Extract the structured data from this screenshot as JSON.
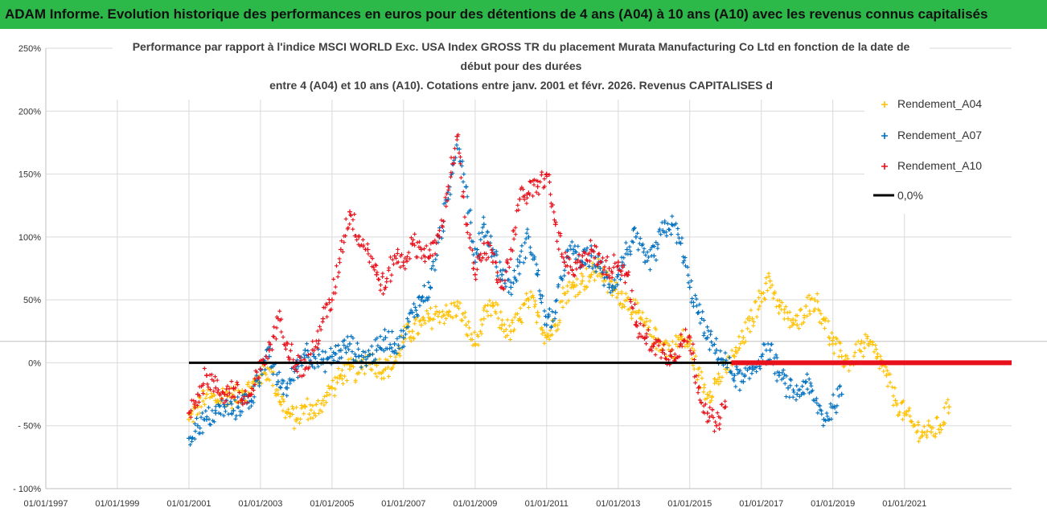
{
  "banner": {
    "title": "ADAM Informe. Evolution historique des performances en euros pour des détentions de 4 ans (A04) à 10 ans (A10) avec les revenus connus capitalisés"
  },
  "colors": {
    "banner": "#2db84a",
    "A04": "#ffc000",
    "A07": "#0070c0",
    "A10": "#e8101a",
    "zero": "#000000",
    "grid": "#d9d9d9"
  },
  "chart_data": {
    "type": "scatter",
    "title_lines": [
      "Performance par rapport à l'indice MSCI WORLD Exc. USA Index GROSS TR  du placement Murata Manufacturing Co Ltd en fonction de la date de",
      "début pour des durées",
      "entre 4 (A04) et 10 ans (A10). Cotations entre janv. 2001 et févr. 2026. Revenus CAPITALISES d"
    ],
    "xlabel": "",
    "ylabel": "",
    "xlim": [
      "1997-01-01",
      "2023-12-31"
    ],
    "ylim": [
      -100,
      250
    ],
    "x_ticks": [
      "01/01/1997",
      "01/01/1999",
      "01/01/2001",
      "01/01/2003",
      "01/01/2005",
      "01/01/2007",
      "01/01/2009",
      "01/01/2011",
      "01/01/2013",
      "01/01/2015",
      "01/01/2017",
      "01/01/2019",
      "01/01/2021"
    ],
    "y_ticks": [
      "250%",
      "200%",
      "150%",
      "100%",
      "50%",
      "0%",
      "- 50%",
      "- 100%"
    ],
    "legend_position": "right",
    "series": [
      {
        "name": "Rendement_A04",
        "x": [
          "2001-01-01",
          "2001-04-01",
          "2001-07-01",
          "2001-10-01",
          "2002-01-01",
          "2002-04-01",
          "2002-07-01",
          "2002-10-01",
          "2003-01-01",
          "2003-04-01",
          "2003-07-01",
          "2003-10-01",
          "2004-01-01",
          "2004-04-01",
          "2004-07-01",
          "2004-10-01",
          "2005-01-01",
          "2005-04-01",
          "2005-07-01",
          "2005-10-01",
          "2006-01-01",
          "2006-04-01",
          "2006-07-01",
          "2006-10-01",
          "2007-01-01",
          "2007-04-01",
          "2007-07-01",
          "2007-10-01",
          "2008-01-01",
          "2008-04-01",
          "2008-07-01",
          "2008-10-01",
          "2009-01-01",
          "2009-04-01",
          "2009-07-01",
          "2009-10-01",
          "2010-01-01",
          "2010-04-01",
          "2010-07-01",
          "2010-10-01",
          "2011-01-01",
          "2011-04-01",
          "2011-07-01",
          "2011-10-01",
          "2012-01-01",
          "2012-04-01",
          "2012-07-01",
          "2012-10-01",
          "2013-01-01",
          "2013-04-01",
          "2013-07-01",
          "2013-10-01",
          "2014-01-01",
          "2014-04-01",
          "2014-07-01",
          "2014-10-01",
          "2015-01-01",
          "2015-04-01",
          "2015-07-01",
          "2015-10-01",
          "2016-01-01",
          "2016-04-01",
          "2016-07-01",
          "2016-10-01",
          "2017-01-01",
          "2017-04-01",
          "2017-07-01",
          "2017-10-01",
          "2018-01-01",
          "2018-04-01",
          "2018-07-01",
          "2018-10-01",
          "2019-01-01",
          "2019-04-01",
          "2019-07-01",
          "2019-10-01",
          "2020-01-01",
          "2020-04-01",
          "2020-07-01",
          "2020-10-01",
          "2021-01-01",
          "2021-04-01",
          "2021-07-01",
          "2021-10-01",
          "2022-01-01",
          "2022-04-01"
        ],
        "y": [
          -45,
          -35,
          -25,
          -30,
          -25,
          -28,
          -22,
          -20,
          -10,
          -5,
          -25,
          -40,
          -45,
          -35,
          -40,
          -30,
          -20,
          -10,
          -5,
          -8,
          5,
          -2,
          -5,
          0,
          20,
          25,
          30,
          35,
          40,
          38,
          45,
          30,
          15,
          35,
          45,
          30,
          25,
          35,
          50,
          40,
          20,
          30,
          55,
          60,
          65,
          70,
          75,
          60,
          55,
          50,
          40,
          30,
          20,
          15,
          10,
          20,
          15,
          -10,
          -25,
          -15,
          -5,
          5,
          20,
          35,
          55,
          65,
          45,
          35,
          30,
          45,
          50,
          35,
          15,
          5,
          0,
          10,
          15,
          5,
          -10,
          -30,
          -40,
          -50,
          -55,
          -55,
          -50,
          -35
        ]
      },
      {
        "name": "Rendement_A07",
        "x": [
          "2001-01-01",
          "2001-04-01",
          "2001-07-01",
          "2001-10-01",
          "2002-01-01",
          "2002-04-01",
          "2002-07-01",
          "2002-10-01",
          "2003-01-01",
          "2003-04-01",
          "2003-07-01",
          "2003-10-01",
          "2004-01-01",
          "2004-04-01",
          "2004-07-01",
          "2004-10-01",
          "2005-01-01",
          "2005-04-01",
          "2005-07-01",
          "2005-10-01",
          "2006-01-01",
          "2006-04-01",
          "2006-07-01",
          "2006-10-01",
          "2007-01-01",
          "2007-04-01",
          "2007-07-01",
          "2007-10-01",
          "2008-01-01",
          "2008-04-01",
          "2008-07-01",
          "2008-10-01",
          "2009-01-01",
          "2009-04-01",
          "2009-07-01",
          "2009-10-01",
          "2010-01-01",
          "2010-04-01",
          "2010-07-01",
          "2010-10-01",
          "2011-01-01",
          "2011-04-01",
          "2011-07-01",
          "2011-10-01",
          "2012-01-01",
          "2012-04-01",
          "2012-07-01",
          "2012-10-01",
          "2013-01-01",
          "2013-04-01",
          "2013-07-01",
          "2013-10-01",
          "2014-01-01",
          "2014-04-01",
          "2014-07-01",
          "2014-10-01",
          "2015-01-01",
          "2015-04-01",
          "2015-07-01",
          "2015-10-01",
          "2016-01-01",
          "2016-04-01",
          "2016-07-01",
          "2016-10-01",
          "2017-01-01",
          "2017-04-01",
          "2017-07-01",
          "2017-10-01",
          "2018-01-01",
          "2018-04-01",
          "2018-07-01",
          "2018-10-01",
          "2019-01-01",
          "2019-04-01"
        ],
        "y": [
          -60,
          -50,
          -45,
          -40,
          -35,
          -38,
          -32,
          -30,
          -5,
          5,
          -15,
          -20,
          -5,
          10,
          5,
          0,
          5,
          10,
          15,
          5,
          5,
          10,
          20,
          15,
          20,
          40,
          50,
          60,
          100,
          130,
          180,
          140,
          80,
          110,
          90,
          70,
          60,
          80,
          100,
          70,
          30,
          40,
          80,
          90,
          80,
          85,
          75,
          60,
          70,
          90,
          100,
          80,
          85,
          105,
          110,
          95,
          60,
          40,
          20,
          10,
          0,
          -10,
          -15,
          -5,
          5,
          10,
          -10,
          -20,
          -25,
          -15,
          -30,
          -45,
          -35,
          -25
        ]
      },
      {
        "name": "Rendement_A10",
        "x": [
          "2001-01-01",
          "2001-04-01",
          "2001-07-01",
          "2001-10-01",
          "2002-01-01",
          "2002-04-01",
          "2002-07-01",
          "2002-10-01",
          "2003-01-01",
          "2003-04-01",
          "2003-07-01",
          "2003-10-01",
          "2004-01-01",
          "2004-04-01",
          "2004-07-01",
          "2004-10-01",
          "2005-01-01",
          "2005-04-01",
          "2005-07-01",
          "2005-10-01",
          "2006-01-01",
          "2006-04-01",
          "2006-07-01",
          "2006-10-01",
          "2007-01-01",
          "2007-04-01",
          "2007-07-01",
          "2007-10-01",
          "2008-01-01",
          "2008-04-01",
          "2008-07-01",
          "2008-10-01",
          "2009-01-01",
          "2009-04-01",
          "2009-07-01",
          "2009-10-01",
          "2010-01-01",
          "2010-04-01",
          "2010-07-01",
          "2010-10-01",
          "2011-01-01",
          "2011-04-01",
          "2011-07-01",
          "2011-10-01",
          "2012-01-01",
          "2012-04-01",
          "2012-07-01",
          "2012-10-01",
          "2013-01-01",
          "2013-04-01",
          "2013-07-01",
          "2013-10-01",
          "2014-01-01",
          "2014-04-01",
          "2014-07-01",
          "2014-10-01",
          "2015-01-01",
          "2015-04-01",
          "2015-07-01",
          "2015-10-01",
          "2016-01-01"
        ],
        "y": [
          -40,
          -25,
          -10,
          -20,
          -25,
          -20,
          -30,
          -25,
          -5,
          10,
          35,
          15,
          0,
          -5,
          10,
          35,
          50,
          90,
          120,
          100,
          90,
          70,
          60,
          85,
          80,
          95,
          90,
          85,
          100,
          140,
          180,
          110,
          70,
          95,
          80,
          60,
          90,
          130,
          135,
          140,
          150,
          110,
          80,
          70,
          85,
          90,
          80,
          75,
          80,
          70,
          30,
          20,
          15,
          10,
          5,
          15,
          20,
          -20,
          -40,
          -50,
          -35
        ]
      },
      {
        "name": "0,0%",
        "x": [
          "2001-01-01",
          "2023-12-31"
        ],
        "y": [
          0,
          0
        ]
      }
    ]
  }
}
